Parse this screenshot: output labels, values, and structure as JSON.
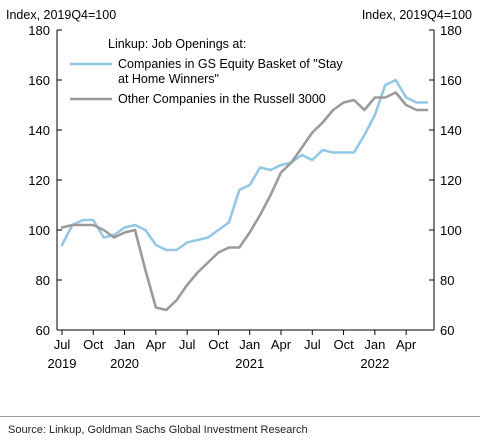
{
  "chart_data": {
    "type": "line",
    "title": "",
    "legend_title": "Linkup: Job Openings at:",
    "ylabel_left": "Index, 2019Q4=100",
    "ylabel_right": "Index, 2019Q4=100",
    "ylim": [
      60,
      180
    ],
    "yticks": [
      "60",
      "80",
      "100",
      "120",
      "140",
      "160",
      "180"
    ],
    "xlim": [
      0,
      36
    ],
    "x_tick_labels": [
      {
        "x": 0,
        "label": "Jul"
      },
      {
        "x": 3,
        "label": "Oct"
      },
      {
        "x": 6,
        "label": "Jan"
      },
      {
        "x": 9,
        "label": "Apr"
      },
      {
        "x": 12,
        "label": "Jul"
      },
      {
        "x": 15,
        "label": "Oct"
      },
      {
        "x": 18,
        "label": "Jan"
      },
      {
        "x": 21,
        "label": "Apr"
      },
      {
        "x": 24,
        "label": "Jul"
      },
      {
        "x": 27,
        "label": "Oct"
      },
      {
        "x": 30,
        "label": "Jan"
      },
      {
        "x": 33,
        "label": "Apr"
      }
    ],
    "x_year_labels": [
      {
        "x": 0,
        "label": "2019"
      },
      {
        "x": 6,
        "label": "2020"
      },
      {
        "x": 18,
        "label": "2021"
      },
      {
        "x": 30,
        "label": "2022"
      }
    ],
    "grid": false,
    "legend_position": "top-left",
    "series": [
      {
        "name": "Companies in GS Equity Basket of \"Stay at Home Winners\"",
        "color": "#93c7e6",
        "x": [
          0,
          1,
          2,
          3,
          4,
          5,
          6,
          7,
          8,
          9,
          10,
          11,
          12,
          13,
          14,
          15,
          16,
          17,
          18,
          19,
          20,
          21,
          22,
          23,
          24,
          25,
          26,
          27,
          28,
          29,
          30,
          31,
          32,
          33,
          34,
          35
        ],
        "y": [
          94,
          102,
          104,
          104,
          97,
          98,
          101,
          102,
          100,
          94,
          92,
          92,
          95,
          96,
          97,
          100,
          103,
          116,
          118,
          125,
          124,
          126,
          127,
          130,
          128,
          132,
          131,
          131,
          131,
          138,
          146,
          158,
          160,
          153,
          151,
          151
        ]
      },
      {
        "name": "Other Companies in the Russell 3000",
        "color": "#9b9b9b",
        "x": [
          0,
          1,
          2,
          3,
          4,
          5,
          6,
          7,
          8,
          9,
          10,
          11,
          12,
          13,
          14,
          15,
          16,
          17,
          18,
          19,
          20,
          21,
          22,
          23,
          24,
          25,
          26,
          27,
          28,
          29,
          30,
          31,
          32,
          33,
          34,
          35
        ],
        "y": [
          101,
          102,
          102,
          102,
          100,
          97,
          99,
          100,
          84,
          69,
          68,
          72,
          78,
          83,
          87,
          91,
          93,
          93,
          99,
          106,
          114,
          123,
          127,
          133,
          139,
          143,
          148,
          151,
          152,
          148,
          153,
          153,
          155,
          150,
          148,
          148
        ]
      }
    ]
  },
  "source_text": "Source: Linkup, Goldman Sachs Global Investment Research"
}
